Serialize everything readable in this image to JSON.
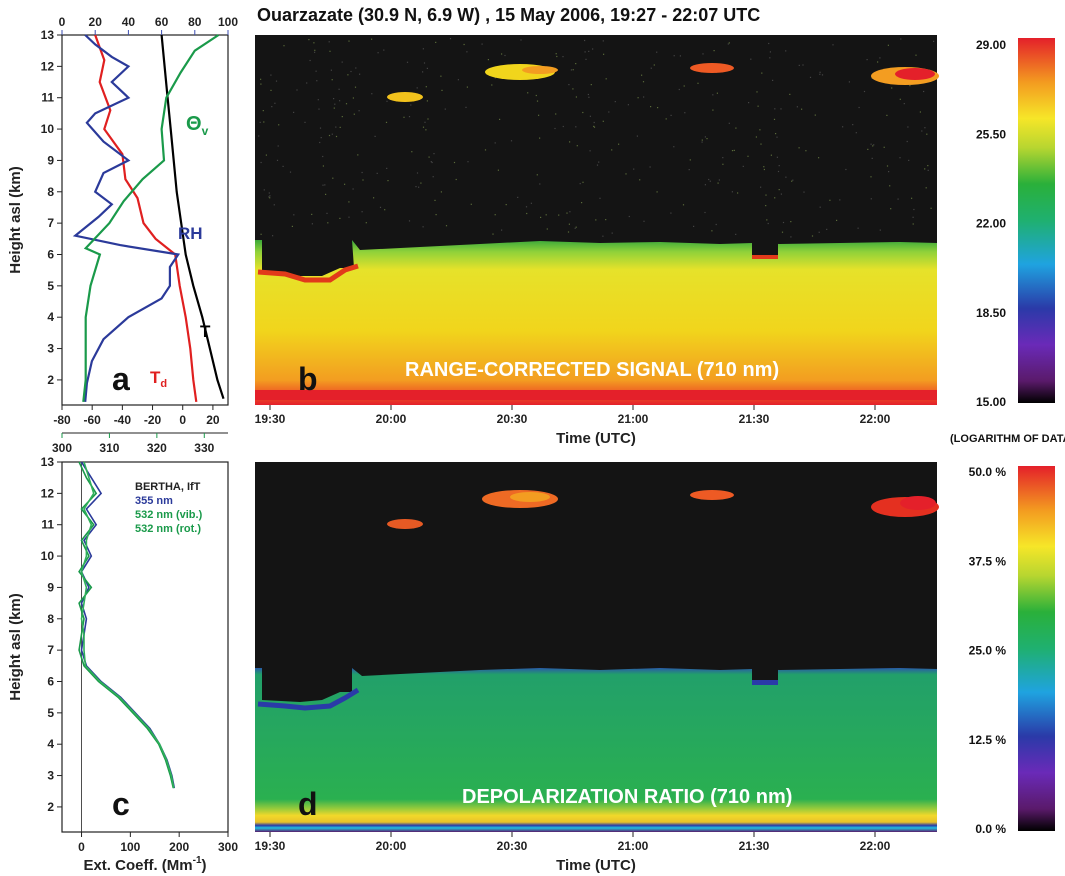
{
  "title": "Ouarzazate (30.9 N, 6.9 W) , 15 May 2006, 19:27 - 22:07 UTC",
  "colors": {
    "rh": "#2b3a9a",
    "td": "#e02020",
    "theta": "#1a9a4a",
    "temp": "#000000",
    "top_axis_blue": "#3b4db0",
    "top_axis_green": "#1a9a4a"
  },
  "panel_a": {
    "letter": "a",
    "ylabel": "Height asl (km)",
    "xticks_bottom": [
      "-80",
      "-60",
      "-40",
      "-20",
      "0",
      "20"
    ],
    "xticks_top_blue": [
      "0",
      "20",
      "40",
      "60",
      "80",
      "100"
    ],
    "xticks_top_green": [
      "300",
      "310",
      "320",
      "330"
    ],
    "yticks": [
      "2",
      "3",
      "4",
      "5",
      "6",
      "7",
      "8",
      "9",
      "10",
      "11",
      "12",
      "13"
    ],
    "labels": {
      "theta": "Θ",
      "theta_sub": "v",
      "rh": "RH",
      "t": "T",
      "td": "T",
      "td_sub": "d"
    }
  },
  "panel_b": {
    "letter": "b",
    "caption": "RANGE-CORRECTED SIGNAL (710 nm)",
    "xlabel": "Time (UTC)",
    "xticks": [
      "19:30",
      "20:00",
      "20:30",
      "21:00",
      "21:30",
      "22:00"
    ]
  },
  "panel_c": {
    "letter": "c",
    "ylabel": "Height asl (km)",
    "xlabel": "Ext. Coeff. (Mm",
    "xlabel_sup": "-1",
    "xlabel_end": ")",
    "xticks": [
      "0",
      "100",
      "200",
      "300"
    ],
    "yticks": [
      "2",
      "3",
      "4",
      "5",
      "6",
      "7",
      "8",
      "9",
      "10",
      "11",
      "12",
      "13"
    ],
    "legend": {
      "title": "BERTHA, IfT",
      "l1": "355 nm",
      "l2": "532 nm (vib.)",
      "l3": "532 nm (rot.)"
    }
  },
  "panel_d": {
    "letter": "d",
    "caption": "DEPOLARIZATION RATIO (710 nm)",
    "xlabel": "Time (UTC)",
    "xticks": [
      "19:30",
      "20:00",
      "20:30",
      "21:00",
      "21:30",
      "22:00"
    ]
  },
  "colorbar_top": {
    "ticks": [
      "29.00",
      "25.50",
      "22.00",
      "18.50",
      "15.00"
    ],
    "note": "(LOGARITHM OF DATA)"
  },
  "colorbar_bottom": {
    "ticks": [
      "50.0 %",
      "37.5 %",
      "25.0 %",
      "12.5 %",
      "0.0 %"
    ]
  },
  "chart_data": [
    {
      "type": "line",
      "panel": "a",
      "ylabel": "Height asl (km)",
      "ylim": [
        1.2,
        13
      ],
      "xlim_bottom": [
        -80,
        30
      ],
      "xlim_top_blue": [
        0,
        100
      ],
      "xlim_top_green": [
        300,
        335
      ],
      "series": [
        {
          "name": "T",
          "axis": "bottom",
          "points": [
            [
              -14,
              13
            ],
            [
              -12,
              12
            ],
            [
              -10,
              11
            ],
            [
              -8,
              10
            ],
            [
              -6,
              9
            ],
            [
              -4,
              8
            ],
            [
              -1,
              7
            ],
            [
              2,
              6
            ],
            [
              7,
              5
            ],
            [
              13,
              4
            ],
            [
              18,
              3
            ],
            [
              23,
              2
            ],
            [
              27,
              1.4
            ]
          ]
        },
        {
          "name": "Td",
          "axis": "bottom",
          "points": [
            [
              -58,
              13
            ],
            [
              -52,
              12.2
            ],
            [
              -55,
              11.5
            ],
            [
              -48,
              10.6
            ],
            [
              -52,
              10.0
            ],
            [
              -40,
              9.2
            ],
            [
              -38,
              8.4
            ],
            [
              -30,
              7.8
            ],
            [
              -26,
              7.0
            ],
            [
              -18,
              6.5
            ],
            [
              -5,
              6.0
            ],
            [
              -2,
              5.0
            ],
            [
              2,
              4.0
            ],
            [
              5,
              3.0
            ],
            [
              7,
              2.0
            ],
            [
              9,
              1.3
            ]
          ]
        },
        {
          "name": "RH",
          "axis": "top_blue",
          "points": [
            [
              14,
              13
            ],
            [
              20,
              12.7
            ],
            [
              30,
              12.3
            ],
            [
              40,
              12.0
            ],
            [
              30,
              11.5
            ],
            [
              40,
              11.0
            ],
            [
              20,
              10.5
            ],
            [
              15,
              10.2
            ],
            [
              25,
              9.6
            ],
            [
              40,
              9.0
            ],
            [
              25,
              8.6
            ],
            [
              20,
              8.0
            ],
            [
              30,
              7.6
            ],
            [
              22,
              7.2
            ],
            [
              8,
              6.6
            ],
            [
              35,
              6.3
            ],
            [
              70,
              6.0
            ],
            [
              65,
              5.6
            ],
            [
              65,
              5.0
            ],
            [
              60,
              4.6
            ],
            [
              40,
              4.0
            ],
            [
              25,
              3.3
            ],
            [
              18,
              2.6
            ],
            [
              15,
              1.9
            ],
            [
              14,
              1.3
            ]
          ]
        },
        {
          "name": "Θv",
          "axis": "top_green",
          "points": [
            [
              333,
              13
            ],
            [
              328,
              12.5
            ],
            [
              325,
              11.8
            ],
            [
              322,
              11.0
            ],
            [
              321,
              10.0
            ],
            [
              321.5,
              9.0
            ],
            [
              317,
              8.4
            ],
            [
              313,
              7.7
            ],
            [
              310,
              7.0
            ],
            [
              305,
              6.2
            ],
            [
              308,
              6.0
            ],
            [
              306,
              5.0
            ],
            [
              305,
              4.0
            ],
            [
              305,
              3.0
            ],
            [
              305,
              2.0
            ],
            [
              304.5,
              1.3
            ]
          ]
        }
      ]
    },
    {
      "type": "line",
      "panel": "c",
      "ylabel": "Height asl (km)",
      "xlim": [
        -40,
        300
      ],
      "ylim": [
        1.2,
        13
      ],
      "series": [
        {
          "name": "355 nm",
          "points": [
            [
              0,
              13
            ],
            [
              20,
              12.5
            ],
            [
              40,
              12.0
            ],
            [
              10,
              11.5
            ],
            [
              30,
              11.0
            ],
            [
              5,
              10.5
            ],
            [
              20,
              10.0
            ],
            [
              0,
              9.5
            ],
            [
              15,
              9.0
            ],
            [
              0,
              8.5
            ],
            [
              10,
              8.0
            ],
            [
              5,
              7.5
            ],
            [
              0,
              7.0
            ],
            [
              10,
              6.5
            ],
            [
              40,
              6.0
            ],
            [
              80,
              5.5
            ],
            [
              110,
              5.0
            ],
            [
              140,
              4.5
            ],
            [
              160,
              4.0
            ],
            [
              175,
              3.5
            ],
            [
              185,
              3.0
            ],
            [
              190,
              2.6
            ]
          ]
        },
        {
          "name": "532 nm (vib.)",
          "points": [
            [
              -5,
              13
            ],
            [
              10,
              12.5
            ],
            [
              30,
              12.0
            ],
            [
              0,
              11.5
            ],
            [
              25,
              11.0
            ],
            [
              0,
              10.5
            ],
            [
              15,
              10.0
            ],
            [
              -5,
              9.5
            ],
            [
              20,
              9.0
            ],
            [
              -5,
              8.5
            ],
            [
              5,
              8.0
            ],
            [
              0,
              7.5
            ],
            [
              -5,
              7.0
            ],
            [
              5,
              6.5
            ],
            [
              35,
              6.0
            ],
            [
              75,
              5.5
            ],
            [
              105,
              5.0
            ],
            [
              135,
              4.5
            ],
            [
              158,
              4.0
            ],
            [
              172,
              3.5
            ],
            [
              182,
              3.0
            ],
            [
              188,
              2.6
            ]
          ]
        },
        {
          "name": "532 nm (rot.)",
          "points": [
            [
              5,
              13
            ],
            [
              15,
              12.5
            ],
            [
              25,
              12.0
            ],
            [
              5,
              11.5
            ],
            [
              20,
              11.0
            ],
            [
              10,
              10.5
            ],
            [
              10,
              10.0
            ],
            [
              0,
              9.5
            ],
            [
              10,
              9.0
            ],
            [
              5,
              8.5
            ],
            [
              0,
              8.0
            ],
            [
              5,
              7.5
            ],
            [
              5,
              7.0
            ],
            [
              8,
              6.5
            ],
            [
              38,
              6.0
            ],
            [
              78,
              5.5
            ],
            [
              108,
              5.0
            ],
            [
              138,
              4.5
            ],
            [
              160,
              4.0
            ],
            [
              174,
              3.5
            ],
            [
              184,
              3.0
            ],
            [
              189,
              2.6
            ]
          ]
        }
      ]
    },
    {
      "type": "heatmap",
      "panel": "b",
      "title": "RANGE-CORRECTED SIGNAL (710 nm)",
      "xlabel": "Time (UTC)",
      "ylabel": "Height asl (km)",
      "colorbar_range": [
        15.0,
        29.0
      ],
      "colorbar_label": "(LOGARITHM OF DATA)"
    },
    {
      "type": "heatmap",
      "panel": "d",
      "title": "DEPOLARIZATION RATIO (710 nm)",
      "xlabel": "Time (UTC)",
      "ylabel": "Height asl (km)",
      "colorbar_range_percent": [
        0.0,
        50.0
      ]
    }
  ]
}
